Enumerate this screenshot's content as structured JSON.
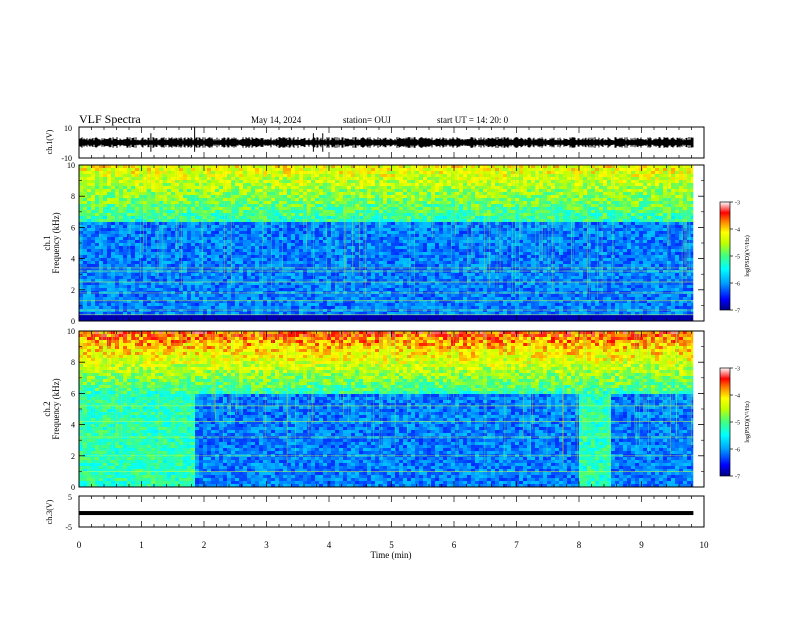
{
  "header": {
    "title": "VLF Spectra",
    "date": "May 14, 2024",
    "station": "station= OUJ",
    "start": "start  UT  =   14: 20: 0"
  },
  "panels": {
    "ch1_wave": {
      "ylabel": "ch.1(V)",
      "yticks": [
        "10",
        "-10"
      ],
      "ylim": [
        -10,
        10
      ]
    },
    "ch1_spec": {
      "ylabel_line1": "ch.1",
      "ylabel_line2": "Frequency (kHz)"
    },
    "ch2_spec": {
      "ylabel_line1": "ch.2",
      "ylabel_line2": "Frequency (kHz)"
    },
    "ch3_wave": {
      "ylabel": "ch.3(V)",
      "yticks": [
        "5",
        "-5"
      ],
      "ylim": [
        -5,
        5
      ]
    }
  },
  "colorbar": {
    "label": "log(PSD)(V²/Hz)",
    "ticks": [
      "-3",
      "-4",
      "-5",
      "-6",
      "-7"
    ],
    "range": [
      -7,
      -3
    ],
    "colors": [
      "#000080",
      "#0000ff",
      "#00a0ff",
      "#00ffff",
      "#40ff80",
      "#c0ff00",
      "#ffff00",
      "#ff8000",
      "#ff0000",
      "#ffffff"
    ]
  },
  "chart_data": {
    "type": "heatmap",
    "xlabel": "Time (min)",
    "xlim": [
      0,
      10
    ],
    "xticks": [
      "0",
      "1",
      "2",
      "3",
      "4",
      "5",
      "6",
      "7",
      "8",
      "9",
      "10"
    ],
    "data_end_min": 9.83,
    "ylim_khz": [
      0,
      10
    ],
    "yticks_khz": [
      "0",
      "2",
      "4",
      "6",
      "8",
      "10"
    ],
    "ch1": {
      "cutoff_khz": 6.5,
      "horizontal_lines_khz": [
        0.4,
        0.7,
        1.3,
        1.8,
        2.5,
        3.2,
        3.4
      ]
    },
    "ch2": {
      "cutoff_khz": 6.0,
      "bright_intervals_min": [
        [
          0,
          1.85
        ],
        [
          8.0,
          8.5
        ]
      ],
      "bright_band_top_khz": 6.0,
      "horizontal_lines_khz": [
        1.0,
        2.0,
        3.2,
        4.2,
        5.2
      ]
    },
    "ch3_level_v": -0.5
  }
}
